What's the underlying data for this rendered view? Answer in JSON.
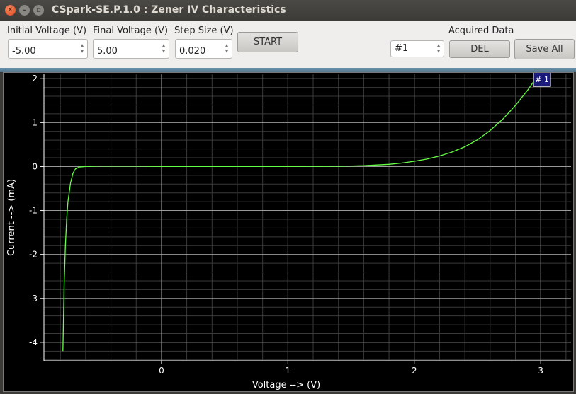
{
  "window": {
    "title": "CSpark-SE.P.1.0 : Zener IV Characteristics",
    "close_glyph": "✕",
    "min_glyph": "–",
    "max_glyph": "▫"
  },
  "controls": {
    "initial_voltage_label": "Initial Voltage (V)",
    "initial_voltage_value": "-5.00",
    "final_voltage_label": "Final Voltage (V)",
    "final_voltage_value": "5.00",
    "step_size_label": "Step Size (V)",
    "step_size_value": "0.020",
    "start_label": "START",
    "acquired_data_label": "Acquired Data",
    "dataset_selected": "#1",
    "del_label": "DEL",
    "save_all_label": "Save All"
  },
  "colors": {
    "trace": "#66ff44",
    "grid_major": "#9a9a9a",
    "grid_minor": "#3a3a3a",
    "axis_text": "#ffffff",
    "tag_bg": "#1a1a7a"
  },
  "chart_data": {
    "type": "line",
    "title": "",
    "xlabel": "Voltage --> (V)",
    "ylabel": "Current --> (mA)",
    "xlim": [
      -0.93,
      3.24
    ],
    "ylim": [
      -4.42,
      2.1
    ],
    "x_ticks": [
      0,
      1,
      2,
      3
    ],
    "y_ticks": [
      2,
      1,
      0,
      -1,
      -2,
      -3,
      -4
    ],
    "grid": true,
    "series": [
      {
        "name": "# 1",
        "x": [
          -0.78,
          -0.775,
          -0.77,
          -0.76,
          -0.75,
          -0.74,
          -0.72,
          -0.7,
          -0.68,
          -0.65,
          -0.6,
          -0.5,
          -0.4,
          -0.2,
          0.0,
          0.5,
          1.0,
          1.4,
          1.6,
          1.8,
          1.9,
          2.0,
          2.1,
          2.2,
          2.3,
          2.4,
          2.5,
          2.6,
          2.7,
          2.8,
          2.9,
          2.96
        ],
        "y": [
          -4.2,
          -3.4,
          -2.7,
          -1.8,
          -1.2,
          -0.8,
          -0.38,
          -0.15,
          -0.05,
          -0.01,
          0.0,
          0.01,
          0.01,
          0.01,
          0.0,
          0.0,
          0.0,
          0.005,
          0.02,
          0.05,
          0.08,
          0.12,
          0.17,
          0.24,
          0.33,
          0.45,
          0.61,
          0.82,
          1.08,
          1.39,
          1.75,
          2.0
        ]
      }
    ]
  }
}
